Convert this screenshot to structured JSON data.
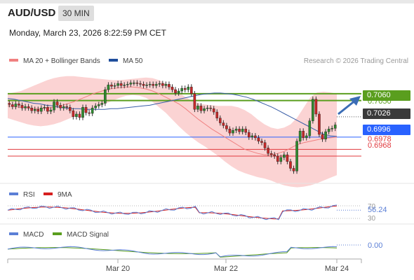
{
  "header": {
    "symbol": "AUD/USD",
    "timeframe": "30 MIN",
    "datetime": "Monday, March 23, 2026 8:22:59 PM CET"
  },
  "main_panel": {
    "legend": [
      {
        "label": "MA 20 + Bollinger Bands",
        "color": "#f08080"
      },
      {
        "label": "MA 50",
        "color": "#1f4e9c"
      }
    ],
    "credit": "Research © 2026 Trading Central",
    "levels": [
      {
        "value": "0.7060",
        "style": "green-pill",
        "color": "#5a9e1e"
      },
      {
        "value": "0.7050",
        "style": "green-line",
        "color": "#5a9e1e"
      },
      {
        "value": "0.7026",
        "style": "dark-pill",
        "color": "#3a3a3a"
      },
      {
        "value": "0.6996",
        "style": "blue-pill",
        "color": "#2962ff"
      },
      {
        "value": "0.6978",
        "style": "red-line",
        "color": "#e0393e"
      },
      {
        "value": "0.6968",
        "style": "red-line",
        "color": "#e0393e"
      }
    ]
  },
  "rsi_panel": {
    "legend": [
      {
        "label": "RSI",
        "color": "#5b7fd6"
      },
      {
        "label": "9MA",
        "color": "#d61f1f"
      }
    ],
    "levels": [
      "70",
      "30"
    ],
    "value": "56.24"
  },
  "macd_panel": {
    "legend": [
      {
        "label": "MACD",
        "color": "#5b7fd6"
      },
      {
        "label": "MACD Signal",
        "color": "#5a9e1e"
      }
    ],
    "value": "0.00"
  },
  "xaxis": {
    "labels": [
      "Mar 20",
      "Mar 22",
      "Mar 24"
    ]
  },
  "chart_data": {
    "type": "candlestick",
    "symbol": "AUD/USD",
    "interval": "30 MIN",
    "ylim": [
      0.6935,
      0.7095
    ],
    "x_tick_labels": [
      "Mar 20",
      "Mar 22",
      "Mar 24"
    ],
    "close": [
      0.7044,
      0.7041,
      0.7045,
      0.7043,
      0.7039,
      0.7041,
      0.7039,
      0.7035,
      0.7037,
      0.7034,
      0.7039,
      0.704,
      0.7034,
      0.7036,
      0.7048,
      0.7043,
      0.7039,
      0.7041,
      0.704,
      0.7035,
      0.7026,
      0.703,
      0.7025,
      0.704,
      0.7032,
      0.7031,
      0.7039,
      0.7042,
      0.7044,
      0.7046,
      0.7066,
      0.7073,
      0.7071,
      0.7072,
      0.7075,
      0.7072,
      0.7073,
      0.7074,
      0.7076,
      0.7076,
      0.7075,
      0.7074,
      0.7072,
      0.7073,
      0.7074,
      0.7072,
      0.7074,
      0.7075,
      0.7072,
      0.7074,
      0.707,
      0.7066,
      0.7061,
      0.7064,
      0.7068,
      0.7066,
      0.707,
      0.706,
      0.7037,
      0.7042,
      0.7035,
      0.7038,
      0.7039,
      0.7038,
      0.7033,
      0.7024,
      0.7017,
      0.7013,
      0.7008,
      0.7002,
      0.7006,
      0.7008,
      0.7004,
      0.7008,
      0.7003,
      0.6996,
      0.6998,
      0.6995,
      0.699,
      0.6988,
      0.698,
      0.6972,
      0.697,
      0.6968,
      0.696,
      0.6966,
      0.697,
      0.696,
      0.695,
      0.6946,
      0.699,
      0.7005,
      0.6995,
      0.6998,
      0.702,
      0.7052,
      0.703,
      0.7,
      0.6993,
      0.7004,
      0.7008,
      0.7009,
      0.7014
    ],
    "ma50": [
      0.7053,
      0.7052,
      0.705,
      0.7048,
      0.7046,
      0.7045,
      0.7043,
      0.7042,
      0.704,
      0.7039,
      0.7038,
      0.7038,
      0.7037,
      0.7037,
      0.7037,
      0.7037,
      0.7038,
      0.7038,
      0.7039,
      0.704,
      0.7041,
      0.7042,
      0.7043,
      0.7045,
      0.7047,
      0.7049,
      0.7051,
      0.7053,
      0.7055,
      0.7057,
      0.7059,
      0.706,
      0.7061,
      0.7061,
      0.706,
      0.7059,
      0.7057,
      0.7055,
      0.7052,
      0.7048,
      0.7044,
      0.704,
      0.7035,
      0.703,
      0.7025,
      0.702,
      0.7015,
      0.701,
      0.7005,
      0.7,
      0.6998,
      0.6997
    ],
    "bollinger_ma20": [
      0.7042,
      0.7041,
      0.704,
      0.7039,
      0.7038,
      0.7038,
      0.7039,
      0.704,
      0.7042,
      0.7045,
      0.7048,
      0.7052,
      0.7056,
      0.706,
      0.7063,
      0.7066,
      0.7068,
      0.7069,
      0.707,
      0.707,
      0.7069,
      0.7067,
      0.7064,
      0.706,
      0.7055,
      0.705,
      0.7045,
      0.7038,
      0.703,
      0.7022,
      0.7015,
      0.7008,
      0.7002,
      0.6996,
      0.699,
      0.6984,
      0.6978,
      0.6975,
      0.6972,
      0.697,
      0.697,
      0.6972,
      0.6975,
      0.698,
      0.6985,
      0.6988,
      0.699,
      0.6992,
      0.6994,
      0.6995,
      0.6996
    ],
    "bollinger_upper": [
      0.706,
      0.7062,
      0.7064,
      0.7068,
      0.7072,
      0.7076,
      0.708,
      0.7083,
      0.7085,
      0.7086,
      0.7086,
      0.7085,
      0.7084,
      0.7083,
      0.7082,
      0.7081,
      0.708,
      0.708,
      0.7081,
      0.7082,
      0.7083,
      0.7084,
      0.7083,
      0.708,
      0.7075,
      0.707,
      0.7062,
      0.7055,
      0.705,
      0.7046,
      0.7044,
      0.7043,
      0.7042,
      0.7042,
      0.7042,
      0.704,
      0.7036,
      0.703,
      0.7022,
      0.7015,
      0.701,
      0.7008,
      0.701,
      0.7015,
      0.7025,
      0.704,
      0.7055,
      0.7062,
      0.7063,
      0.7062,
      0.706
    ],
    "bollinger_lower": [
      0.7024,
      0.7021,
      0.7018,
      0.7015,
      0.7013,
      0.7012,
      0.7013,
      0.7015,
      0.7018,
      0.7022,
      0.7026,
      0.703,
      0.7034,
      0.7038,
      0.7042,
      0.7046,
      0.705,
      0.7054,
      0.7057,
      0.7058,
      0.7057,
      0.7054,
      0.7048,
      0.704,
      0.7032,
      0.7022,
      0.7012,
      0.7003,
      0.6995,
      0.6988,
      0.6982,
      0.6975,
      0.6968,
      0.696,
      0.6953,
      0.6947,
      0.6943,
      0.694,
      0.6937,
      0.6935,
      0.6932,
      0.6928,
      0.6925,
      0.6923,
      0.6922,
      0.6923,
      0.6925,
      0.6928,
      0.6932,
      0.6936,
      0.694
    ],
    "support_resistance": [
      0.706,
      0.705,
      0.7026,
      0.6996,
      0.6978,
      0.6968
    ],
    "rsi": {
      "value": 56.24,
      "levels": [
        70,
        30
      ]
    },
    "macd": {
      "value": 0.0
    }
  }
}
